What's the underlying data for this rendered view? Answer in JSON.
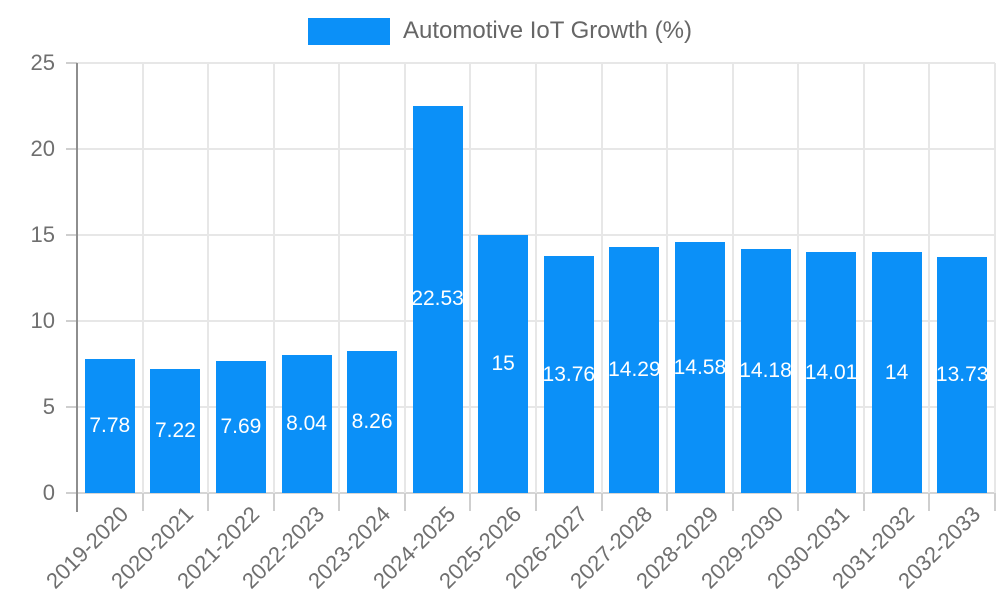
{
  "legend": {
    "label": "Automotive IoT Growth (%)"
  },
  "chart_data": {
    "type": "bar",
    "title": "Automotive IoT Growth (%)",
    "categories": [
      "2019-2020",
      "2020-2021",
      "2021-2022",
      "2022-2023",
      "2023-2024",
      "2024-2025",
      "2025-2026",
      "2026-2027",
      "2027-2028",
      "2028-2029",
      "2029-2030",
      "2030-2031",
      "2031-2032",
      "2032-2033"
    ],
    "values": [
      7.78,
      7.22,
      7.69,
      8.04,
      8.26,
      22.53,
      15,
      13.76,
      14.29,
      14.58,
      14.18,
      14.01,
      14,
      13.73
    ],
    "value_labels": [
      "7.78",
      "7.22",
      "7.69",
      "8.04",
      "8.26",
      "22.53",
      "15",
      "13.76",
      "14.29",
      "14.58",
      "14.18",
      "14.01",
      "14",
      "13.73"
    ],
    "xlabel": "",
    "ylabel": "",
    "ylim": [
      0,
      25
    ],
    "yticks": [
      0,
      5,
      10,
      15,
      20,
      25
    ],
    "grid": true,
    "legend_position": "top",
    "colors": {
      "bar": "#0b90f8",
      "grid": "#e7e7e7",
      "baseline": "#d5d5d5",
      "axis_line": "#8e8e8e",
      "tick": "#cfcfcf",
      "axis_text": "#6f6f6f",
      "legend_text": "#666666",
      "value_text": "#ffffff"
    }
  }
}
